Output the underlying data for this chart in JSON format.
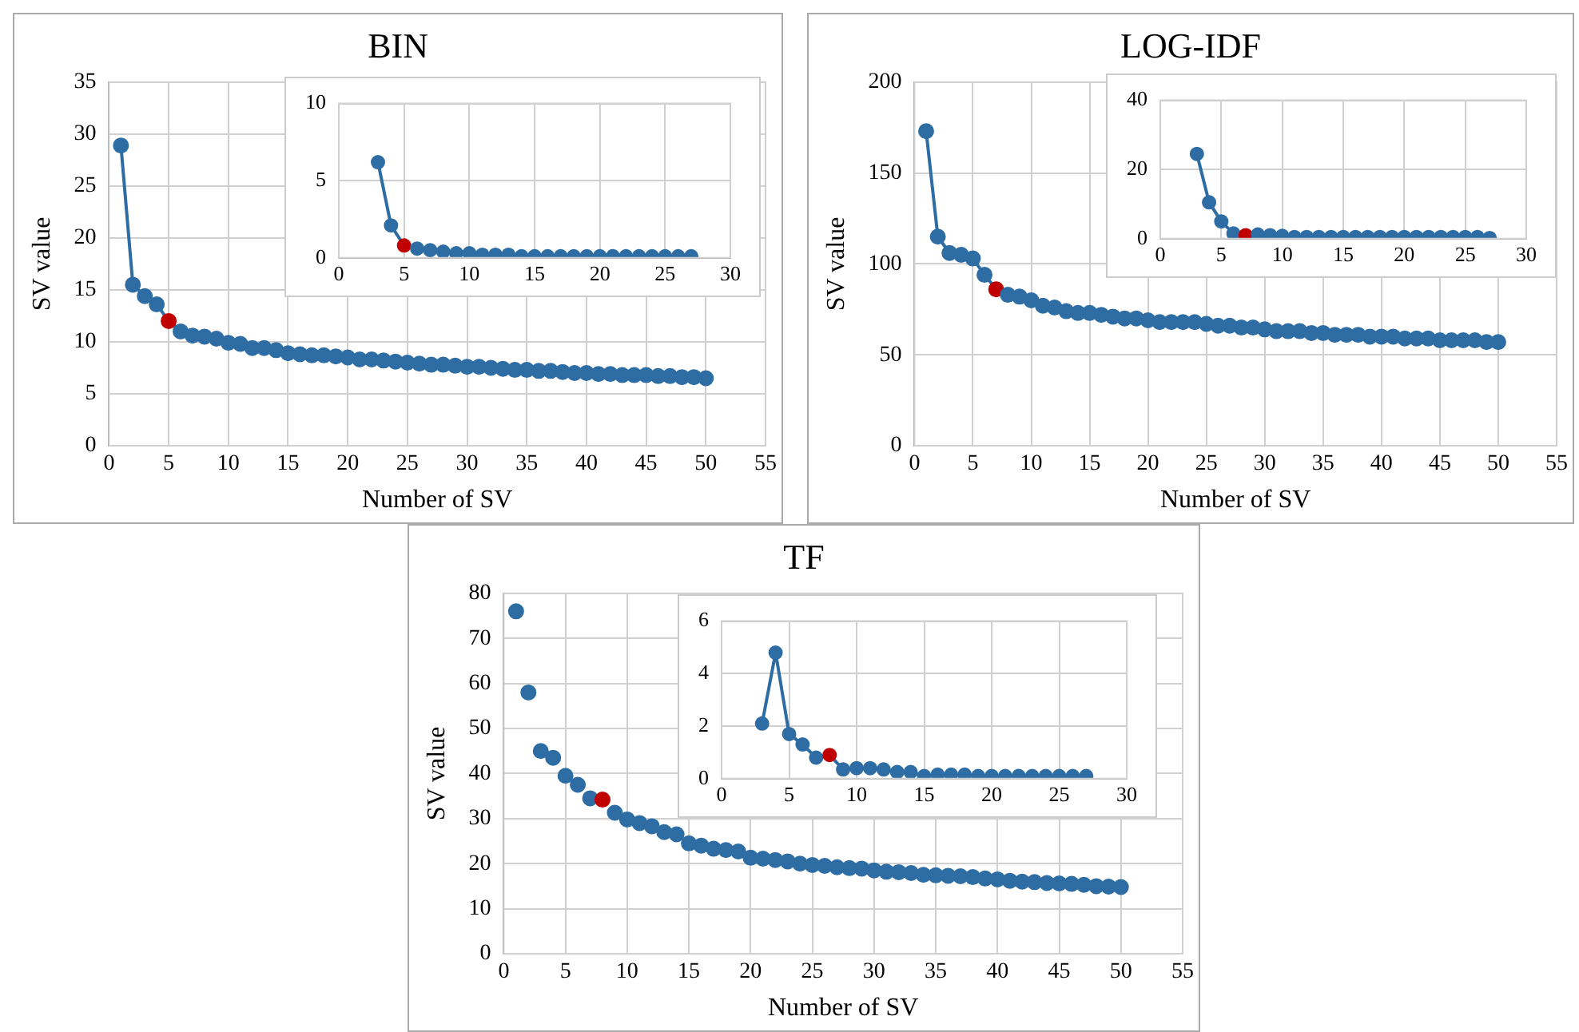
{
  "chart_data": [
    {
      "type": "line",
      "title": "BIN",
      "xlabel": "Number of SV",
      "ylabel": "SV value",
      "xlim": [
        0,
        55
      ],
      "xticks": [
        0,
        5,
        10,
        15,
        20,
        25,
        30,
        35,
        40,
        45,
        50,
        55
      ],
      "ylim": [
        0,
        35
      ],
      "yticks": [
        0,
        5,
        10,
        15,
        20,
        25,
        30,
        35
      ],
      "grid": true,
      "legend": false,
      "marker": "circle",
      "line_style": "solid",
      "x": [
        1,
        2,
        3,
        4,
        5,
        6,
        7,
        8,
        9,
        10,
        11,
        12,
        13,
        14,
        15,
        16,
        17,
        18,
        19,
        20,
        21,
        22,
        23,
        24,
        25,
        26,
        27,
        28,
        29,
        30,
        31,
        32,
        33,
        34,
        35,
        36,
        37,
        38,
        39,
        40,
        41,
        42,
        43,
        44,
        45,
        46,
        47,
        48,
        49,
        50
      ],
      "series": [
        {
          "color": "#2e6da4",
          "colors": [
            "#2e6da4",
            "#2e6da4",
            "#2e6da4",
            "#2e6da4",
            "#c00000",
            "#2e6da4",
            "#2e6da4",
            "#2e6da4",
            "#2e6da4",
            "#2e6da4",
            "#2e6da4",
            "#2e6da4",
            "#2e6da4",
            "#2e6da4",
            "#2e6da4",
            "#2e6da4",
            "#2e6da4",
            "#2e6da4",
            "#2e6da4",
            "#2e6da4",
            "#2e6da4",
            "#2e6da4",
            "#2e6da4",
            "#2e6da4",
            "#2e6da4",
            "#2e6da4",
            "#2e6da4",
            "#2e6da4",
            "#2e6da4",
            "#2e6da4",
            "#2e6da4",
            "#2e6da4",
            "#2e6da4",
            "#2e6da4",
            "#2e6da4",
            "#2e6da4",
            "#2e6da4",
            "#2e6da4",
            "#2e6da4",
            "#2e6da4",
            "#2e6da4",
            "#2e6da4",
            "#2e6da4",
            "#2e6da4",
            "#2e6da4",
            "#2e6da4",
            "#2e6da4",
            "#2e6da4",
            "#2e6da4",
            "#2e6da4"
          ],
          "values": [
            28.9,
            15.5,
            14.4,
            13.6,
            12.0,
            11.0,
            10.6,
            10.5,
            10.3,
            9.9,
            9.8,
            9.4,
            9.4,
            9.2,
            8.9,
            8.8,
            8.7,
            8.7,
            8.6,
            8.5,
            8.3,
            8.3,
            8.2,
            8.1,
            8.0,
            7.9,
            7.8,
            7.8,
            7.7,
            7.6,
            7.6,
            7.5,
            7.4,
            7.3,
            7.3,
            7.2,
            7.2,
            7.1,
            7.0,
            7.0,
            6.9,
            6.9,
            6.8,
            6.8,
            6.8,
            6.7,
            6.7,
            6.6,
            6.6,
            6.5
          ]
        }
      ]
    },
    {
      "type": "line",
      "xlim": [
        0,
        30
      ],
      "xticks": [
        0,
        5,
        10,
        15,
        20,
        25,
        30
      ],
      "ylim": [
        0,
        10
      ],
      "yticks": [
        0,
        5,
        10
      ],
      "grid": true,
      "legend": false,
      "marker": "circle",
      "line_style": "solid",
      "x": [
        3,
        4,
        5,
        6,
        7,
        8,
        9,
        10,
        11,
        12,
        13,
        14,
        15,
        16,
        17,
        18,
        19,
        20,
        21,
        22,
        23,
        24,
        25,
        26,
        27
      ],
      "series": [
        {
          "color": "#2e6da4",
          "colors": [
            "#2e6da4",
            "#2e6da4",
            "#c00000",
            "#2e6da4",
            "#2e6da4",
            "#2e6da4",
            "#2e6da4",
            "#2e6da4",
            "#2e6da4",
            "#2e6da4",
            "#2e6da4",
            "#2e6da4",
            "#2e6da4",
            "#2e6da4",
            "#2e6da4",
            "#2e6da4",
            "#2e6da4",
            "#2e6da4",
            "#2e6da4",
            "#2e6da4",
            "#2e6da4",
            "#2e6da4",
            "#2e6da4",
            "#2e6da4",
            "#2e6da4"
          ],
          "values": [
            6.2,
            2.1,
            0.8,
            0.6,
            0.5,
            0.4,
            0.3,
            0.3,
            0.2,
            0.2,
            0.2,
            0.1,
            0.1,
            0.1,
            0.1,
            0.1,
            0.1,
            0.1,
            0.1,
            0.1,
            0.1,
            0.1,
            0.1,
            0.1,
            0.1
          ]
        }
      ]
    },
    {
      "type": "line",
      "title": "LOG-IDF",
      "xlabel": "Number of SV",
      "ylabel": "SV value",
      "xlim": [
        0,
        55
      ],
      "xticks": [
        0,
        5,
        10,
        15,
        20,
        25,
        30,
        35,
        40,
        45,
        50,
        55
      ],
      "ylim": [
        0,
        200
      ],
      "yticks": [
        0,
        50,
        100,
        150,
        200
      ],
      "grid": true,
      "legend": false,
      "marker": "circle",
      "line_style": "solid",
      "x": [
        1,
        2,
        3,
        4,
        5,
        6,
        7,
        8,
        9,
        10,
        11,
        12,
        13,
        14,
        15,
        16,
        17,
        18,
        19,
        20,
        21,
        22,
        23,
        24,
        25,
        26,
        27,
        28,
        29,
        30,
        31,
        32,
        33,
        34,
        35,
        36,
        37,
        38,
        39,
        40,
        41,
        42,
        43,
        44,
        45,
        46,
        47,
        48,
        49,
        50
      ],
      "series": [
        {
          "color": "#2e6da4",
          "colors": [
            "#2e6da4",
            "#2e6da4",
            "#2e6da4",
            "#2e6da4",
            "#2e6da4",
            "#2e6da4",
            "#c00000",
            "#2e6da4",
            "#2e6da4",
            "#2e6da4",
            "#2e6da4",
            "#2e6da4",
            "#2e6da4",
            "#2e6da4",
            "#2e6da4",
            "#2e6da4",
            "#2e6da4",
            "#2e6da4",
            "#2e6da4",
            "#2e6da4",
            "#2e6da4",
            "#2e6da4",
            "#2e6da4",
            "#2e6da4",
            "#2e6da4",
            "#2e6da4",
            "#2e6da4",
            "#2e6da4",
            "#2e6da4",
            "#2e6da4",
            "#2e6da4",
            "#2e6da4",
            "#2e6da4",
            "#2e6da4",
            "#2e6da4",
            "#2e6da4",
            "#2e6da4",
            "#2e6da4",
            "#2e6da4",
            "#2e6da4",
            "#2e6da4",
            "#2e6da4",
            "#2e6da4",
            "#2e6da4",
            "#2e6da4",
            "#2e6da4",
            "#2e6da4",
            "#2e6da4",
            "#2e6da4",
            "#2e6da4"
          ],
          "values": [
            173,
            115,
            106,
            105,
            103,
            94,
            86,
            83,
            82,
            80,
            77,
            76,
            74,
            73,
            73,
            72,
            71,
            70,
            70,
            69,
            68,
            68,
            68,
            68,
            67,
            66,
            66,
            65,
            65,
            64,
            63,
            63,
            63,
            62,
            62,
            61,
            61,
            61,
            60,
            60,
            60,
            59,
            59,
            59,
            58,
            58,
            58,
            58,
            57,
            57
          ]
        }
      ]
    },
    {
      "type": "line",
      "xlim": [
        0,
        30
      ],
      "xticks": [
        0,
        5,
        10,
        15,
        20,
        25,
        30
      ],
      "ylim": [
        0,
        40
      ],
      "yticks": [
        0,
        20,
        40
      ],
      "grid": true,
      "legend": false,
      "marker": "circle",
      "line_style": "solid",
      "x": [
        3,
        4,
        5,
        6,
        7,
        8,
        9,
        10,
        11,
        12,
        13,
        14,
        15,
        16,
        17,
        18,
        19,
        20,
        21,
        22,
        23,
        24,
        25,
        26,
        27
      ],
      "series": [
        {
          "color": "#2e6da4",
          "colors": [
            "#2e6da4",
            "#2e6da4",
            "#2e6da4",
            "#2e6da4",
            "#c00000",
            "#2e6da4",
            "#2e6da4",
            "#2e6da4",
            "#2e6da4",
            "#2e6da4",
            "#2e6da4",
            "#2e6da4",
            "#2e6da4",
            "#2e6da4",
            "#2e6da4",
            "#2e6da4",
            "#2e6da4",
            "#2e6da4",
            "#2e6da4",
            "#2e6da4",
            "#2e6da4",
            "#2e6da4",
            "#2e6da4",
            "#2e6da4",
            "#2e6da4"
          ],
          "values": [
            24.5,
            10.5,
            5,
            1.5,
            1,
            1.2,
            1,
            0.8,
            0.5,
            0.5,
            0.5,
            0.5,
            0.5,
            0.5,
            0.5,
            0.5,
            0.5,
            0.5,
            0.5,
            0.5,
            0.5,
            0.5,
            0.5,
            0.5,
            0.2
          ]
        }
      ]
    },
    {
      "type": "scatter",
      "title": "TF",
      "xlabel": "Number of SV",
      "ylabel": "SV value",
      "xlim": [
        0,
        55
      ],
      "xticks": [
        0,
        5,
        10,
        15,
        20,
        25,
        30,
        35,
        40,
        45,
        50,
        55
      ],
      "ylim": [
        0,
        80
      ],
      "yticks": [
        0,
        10,
        20,
        30,
        40,
        50,
        60,
        70,
        80
      ],
      "grid": true,
      "legend": false,
      "marker": "circle",
      "x": [
        1,
        2,
        3,
        4,
        5,
        6,
        7,
        8,
        9,
        10,
        11,
        12,
        13,
        14,
        15,
        16,
        17,
        18,
        19,
        20,
        21,
        22,
        23,
        24,
        25,
        26,
        27,
        28,
        29,
        30,
        31,
        32,
        33,
        34,
        35,
        36,
        37,
        38,
        39,
        40,
        41,
        42,
        43,
        44,
        45,
        46,
        47,
        48,
        49,
        50
      ],
      "series": [
        {
          "color": "#2e6da4",
          "colors": [
            "#2e6da4",
            "#2e6da4",
            "#2e6da4",
            "#2e6da4",
            "#2e6da4",
            "#2e6da4",
            "#2e6da4",
            "#c00000",
            "#2e6da4",
            "#2e6da4",
            "#2e6da4",
            "#2e6da4",
            "#2e6da4",
            "#2e6da4",
            "#2e6da4",
            "#2e6da4",
            "#2e6da4",
            "#2e6da4",
            "#2e6da4",
            "#2e6da4",
            "#2e6da4",
            "#2e6da4",
            "#2e6da4",
            "#2e6da4",
            "#2e6da4",
            "#2e6da4",
            "#2e6da4",
            "#2e6da4",
            "#2e6da4",
            "#2e6da4",
            "#2e6da4",
            "#2e6da4",
            "#2e6da4",
            "#2e6da4",
            "#2e6da4",
            "#2e6da4",
            "#2e6da4",
            "#2e6da4",
            "#2e6da4",
            "#2e6da4",
            "#2e6da4",
            "#2e6da4",
            "#2e6da4",
            "#2e6da4",
            "#2e6da4",
            "#2e6da4",
            "#2e6da4",
            "#2e6da4",
            "#2e6da4",
            "#2e6da4"
          ],
          "values": [
            76,
            58,
            45,
            43.5,
            39.5,
            37.5,
            34.5,
            34.2,
            31.3,
            29.8,
            29,
            28.3,
            27,
            26.5,
            24.5,
            24,
            23.3,
            23,
            22.7,
            21.3,
            21.1,
            20.8,
            20.5,
            20,
            19.7,
            19.5,
            19.2,
            19,
            18.9,
            18.5,
            18.2,
            18.1,
            17.9,
            17.5,
            17.4,
            17.3,
            17.2,
            17,
            16.7,
            16.5,
            16.2,
            16,
            15.9,
            15.7,
            15.6,
            15.5,
            15.3,
            15,
            14.9,
            14.8
          ]
        }
      ]
    },
    {
      "type": "line",
      "xlim": [
        0,
        30
      ],
      "xticks": [
        0,
        5,
        10,
        15,
        20,
        25,
        30
      ],
      "ylim": [
        0,
        6
      ],
      "yticks": [
        0,
        2,
        4,
        6
      ],
      "grid": true,
      "legend": false,
      "marker": "circle",
      "line_style": "solid",
      "x": [
        3,
        4,
        5,
        6,
        7,
        8,
        9,
        10,
        11,
        12,
        13,
        14,
        15,
        16,
        17,
        18,
        19,
        20,
        21,
        22,
        23,
        24,
        25,
        26,
        27
      ],
      "series": [
        {
          "color": "#2e6da4",
          "colors": [
            "#2e6da4",
            "#2e6da4",
            "#2e6da4",
            "#2e6da4",
            "#2e6da4",
            "#c00000",
            "#2e6da4",
            "#2e6da4",
            "#2e6da4",
            "#2e6da4",
            "#2e6da4",
            "#2e6da4",
            "#2e6da4",
            "#2e6da4",
            "#2e6da4",
            "#2e6da4",
            "#2e6da4",
            "#2e6da4",
            "#2e6da4",
            "#2e6da4",
            "#2e6da4",
            "#2e6da4",
            "#2e6da4",
            "#2e6da4",
            "#2e6da4"
          ],
          "values": [
            2.1,
            4.8,
            1.7,
            1.3,
            0.8,
            0.9,
            0.35,
            0.4,
            0.4,
            0.35,
            0.25,
            0.25,
            0.1,
            0.15,
            0.15,
            0.15,
            0.1,
            0.1,
            0.1,
            0.1,
            0.1,
            0.1,
            0.1,
            0.1,
            0.1
          ]
        }
      ]
    }
  ]
}
